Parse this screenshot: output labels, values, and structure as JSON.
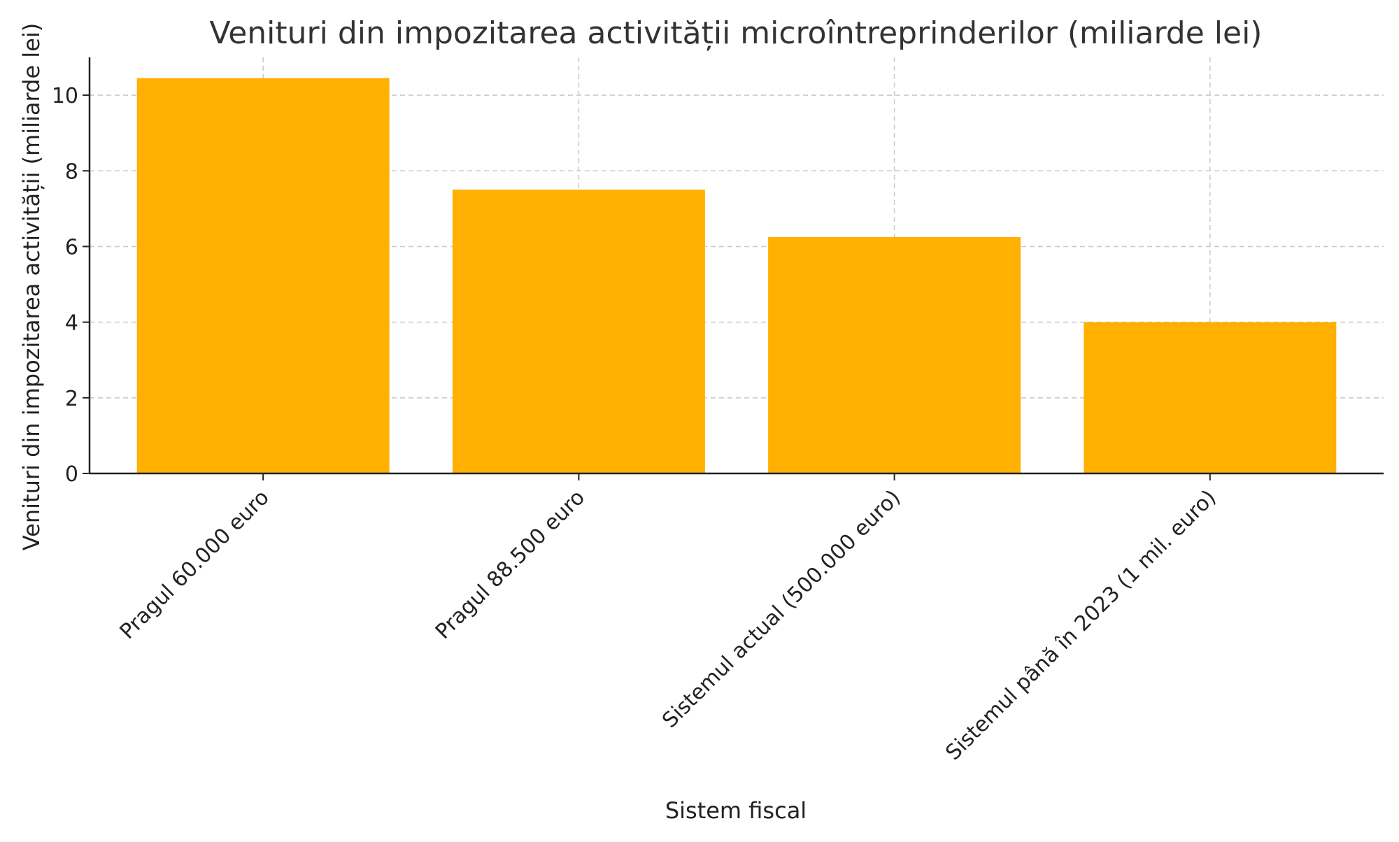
{
  "chart_data": {
    "type": "bar",
    "title": "Venituri din impozitarea activității microîntreprinderilor (miliarde lei)",
    "xlabel": "Sistem fiscal",
    "ylabel": "Venituri din impozitarea activității (miliarde lei)",
    "categories": [
      "Pragul 60.000 euro",
      "Pragul 88.500 euro",
      "Sistemul actual (500.000 euro)",
      "Sistemul până în 2023 (1 mil. euro)"
    ],
    "values": [
      10.45,
      7.5,
      6.25,
      4.0
    ],
    "ylim": [
      0,
      11
    ],
    "yticks": [
      0,
      2,
      4,
      6,
      8,
      10
    ],
    "grid": true,
    "bar_color": "#FFB000"
  }
}
